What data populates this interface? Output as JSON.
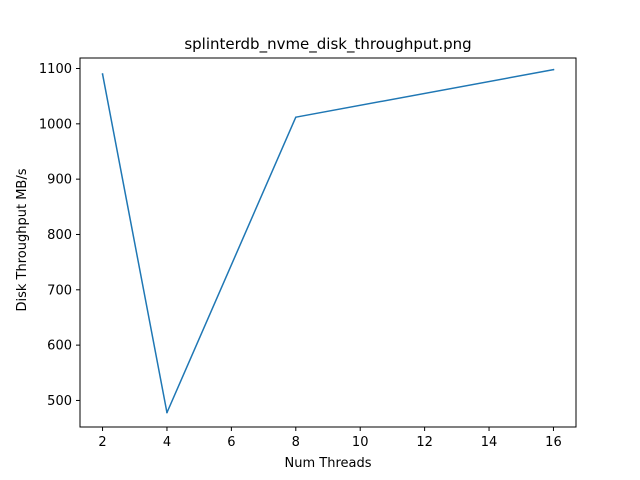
{
  "chart_data": {
    "type": "line",
    "title": "splinterdb_nvme_disk_throughput.png",
    "xlabel": "Num Threads",
    "ylabel": "Disk Throughput MB/s",
    "xlim": [
      1.3,
      16.7
    ],
    "ylim": [
      452,
      1119
    ],
    "xticks": [
      2,
      4,
      6,
      8,
      10,
      12,
      14,
      16
    ],
    "yticks": [
      500,
      600,
      700,
      800,
      900,
      1000,
      1100
    ],
    "grid": false,
    "series": [
      {
        "color": "#1f77b4",
        "points": [
          {
            "x": 2,
            "y": 1090
          },
          {
            "x": 4,
            "y": 478
          },
          {
            "x": 8,
            "y": 1012
          },
          {
            "x": 16,
            "y": 1098
          }
        ]
      }
    ]
  }
}
